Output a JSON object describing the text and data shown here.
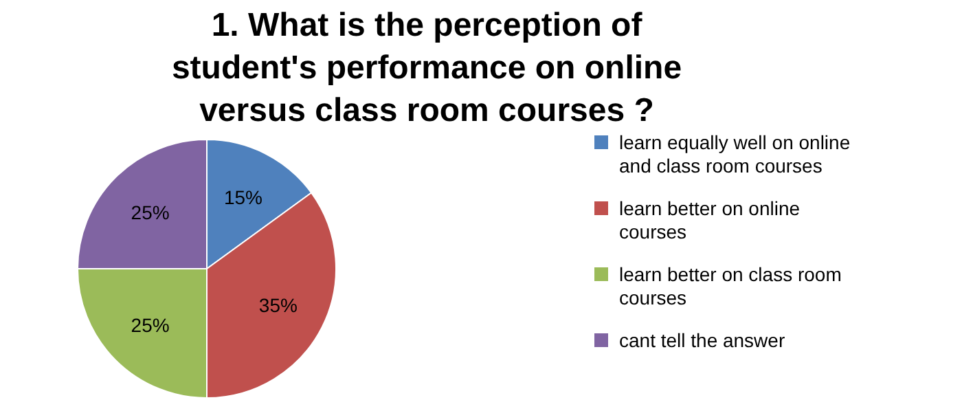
{
  "chart_data": {
    "type": "pie",
    "title": "1. What is the perception of student's performance on online versus class room courses ?",
    "categories": [
      "learn equally well on online and class room courses",
      "learn better on online courses",
      "learn better on class room courses",
      "cant tell the answer"
    ],
    "values": [
      15,
      35,
      25,
      25
    ],
    "value_labels": [
      "15%",
      "35%",
      "25%",
      "25%"
    ],
    "colors": [
      "#4f81bd",
      "#c0504d",
      "#9bbb59",
      "#8064a2"
    ],
    "legend": "right"
  }
}
